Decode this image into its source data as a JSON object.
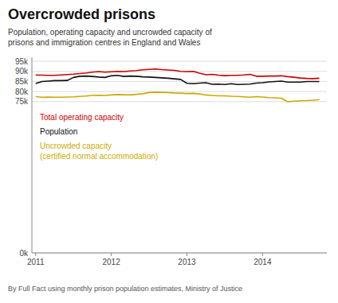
{
  "chart_data": {
    "type": "line",
    "title": "Overcrowded prisons",
    "subtitle": "Population, operating capacity and uncrowded capacity of\nprisons and immigration centres in England and Wales",
    "footer": "By Full Fact using monthly prison population estimates, Ministry of Justice",
    "x": [
      2011,
      2011.083333,
      2011.166667,
      2011.25,
      2011.333333,
      2011.416667,
      2011.5,
      2011.583333,
      2011.666667,
      2011.75,
      2011.833333,
      2011.916667,
      2012,
      2012.083333,
      2012.166667,
      2012.25,
      2012.333333,
      2012.416667,
      2012.5,
      2012.583333,
      2012.666667,
      2012.75,
      2012.833333,
      2012.916667,
      2013,
      2013.083333,
      2013.166667,
      2013.25,
      2013.333333,
      2013.416667,
      2013.5,
      2013.583333,
      2013.666667,
      2013.75,
      2013.833333,
      2013.916667,
      2014,
      2014.083333,
      2014.166667,
      2014.25,
      2014.333333,
      2014.416667,
      2014.5,
      2014.583333,
      2014.666667,
      2014.75
    ],
    "xlim": [
      2010.95,
      2014.85
    ],
    "xticks": [
      2011,
      2012,
      2013,
      2014
    ],
    "ylim": [
      0,
      97000
    ],
    "yticks": [
      {
        "value": 0,
        "label": "0k"
      },
      {
        "value": 75000,
        "label": "75k"
      },
      {
        "value": 80000,
        "label": "80k"
      },
      {
        "value": 85000,
        "label": "85k"
      },
      {
        "value": 90000,
        "label": "90k"
      },
      {
        "value": 95000,
        "label": "95k"
      }
    ],
    "grid": true,
    "series": [
      {
        "name": "Total operating capacity",
        "color": "#cc0000",
        "values": [
          88200,
          88100,
          88000,
          88000,
          88200,
          88400,
          88600,
          88900,
          89200,
          89600,
          89900,
          89600,
          89800,
          90000,
          89900,
          90200,
          90400,
          90800,
          91000,
          91200,
          90900,
          90700,
          90500,
          90000,
          89900,
          90000,
          89100,
          88300,
          88500,
          88100,
          87900,
          88000,
          88000,
          88200,
          88500,
          87600,
          87600,
          87700,
          87700,
          87800,
          87400,
          87100,
          86700,
          86500,
          86400,
          86600
        ]
      },
      {
        "name": "Population",
        "color": "#111111",
        "values": [
          84000,
          85000,
          85200,
          85400,
          85400,
          85500,
          87000,
          87600,
          87700,
          87500,
          87200,
          87000,
          87800,
          88000,
          87500,
          87700,
          87600,
          87300,
          87200,
          87000,
          86800,
          86600,
          86300,
          86000,
          84100,
          83900,
          84200,
          84400,
          83600,
          83700,
          83500,
          83900,
          83500,
          83600,
          83700,
          84200,
          84400,
          84800,
          85000,
          85200,
          84700,
          84700,
          84700,
          85000,
          85000,
          85000
        ]
      },
      {
        "name": "Uncrowded capacity\n(certified  normal accommodation)",
        "color": "#ccaa00",
        "values": [
          77500,
          77200,
          77300,
          77200,
          77200,
          77300,
          77400,
          77600,
          77800,
          78100,
          78200,
          78100,
          78300,
          78500,
          78400,
          78300,
          78600,
          78900,
          79500,
          79700,
          79600,
          79500,
          79300,
          79200,
          79000,
          79100,
          78800,
          78300,
          78100,
          77900,
          77900,
          77700,
          77600,
          77400,
          77200,
          77500,
          77300,
          77000,
          76900,
          76700,
          74900,
          75200,
          75400,
          75500,
          75700,
          76000
        ]
      }
    ]
  }
}
